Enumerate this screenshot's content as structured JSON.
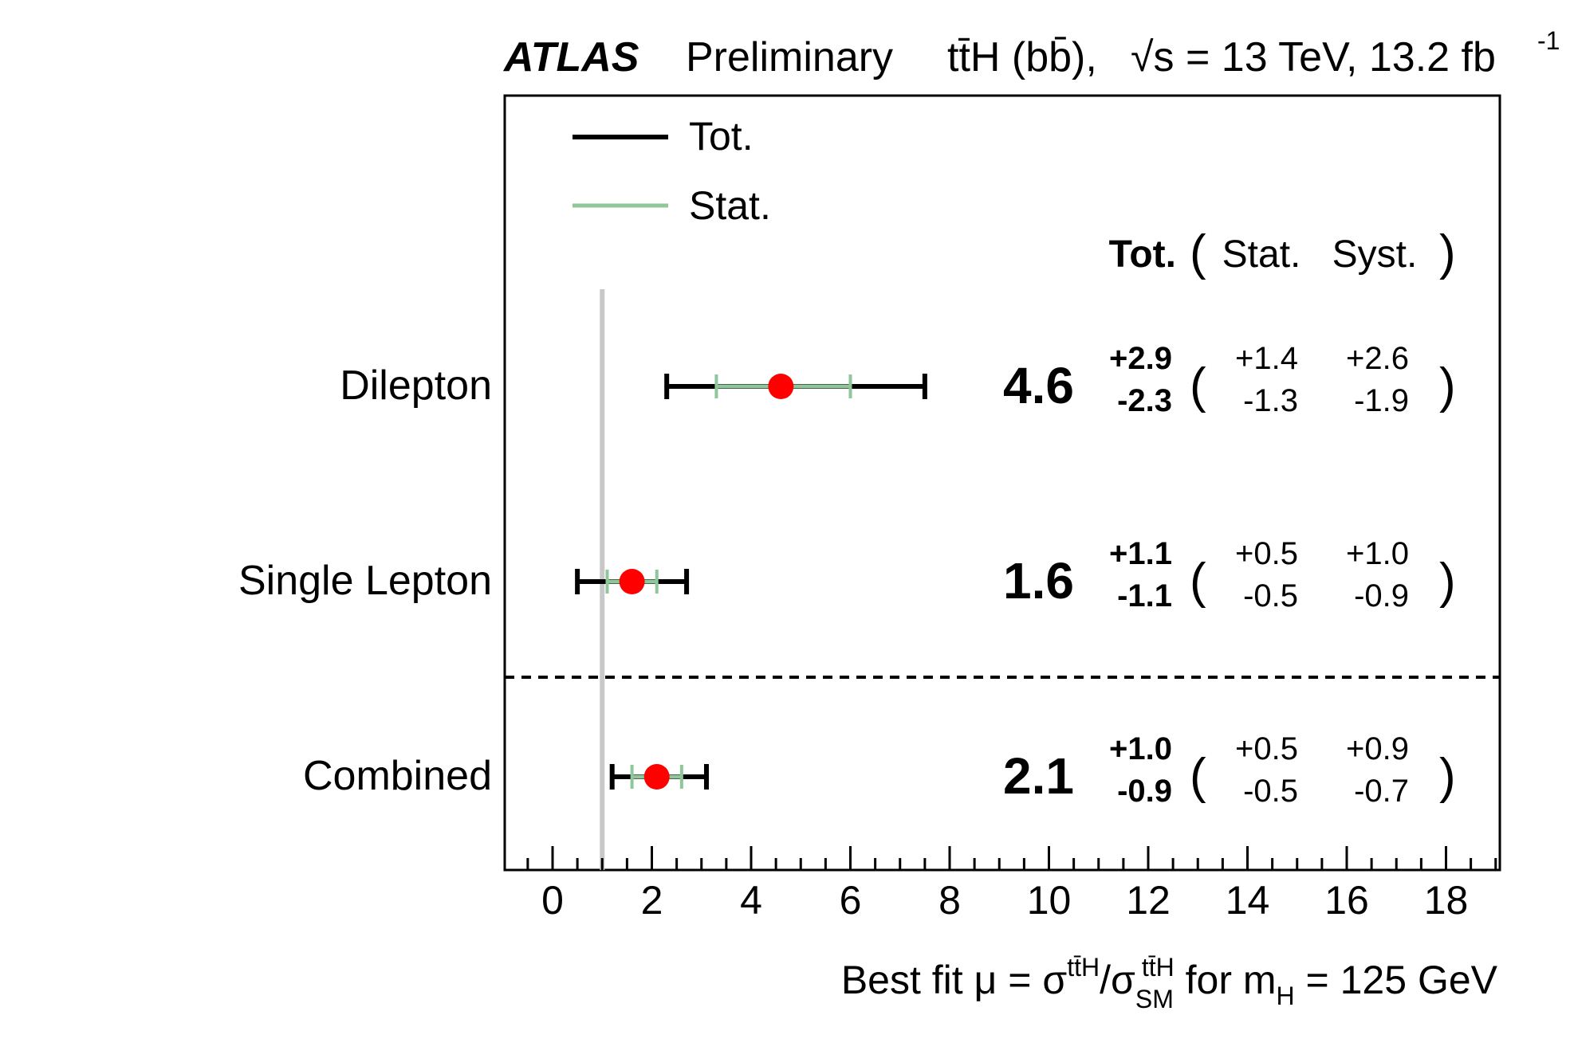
{
  "header": {
    "experiment": "ATLAS",
    "status": "Preliminary",
    "process": "tt̄H (bb̄),",
    "energy": "√s = 13 TeV, 13.2 fb",
    "lumi_exp": "-1"
  },
  "legend": {
    "total_label": "Tot.",
    "stat_label": "Stat."
  },
  "columns": {
    "tot": "Tot.",
    "open_paren": "(",
    "stat": "Stat.",
    "syst": "Syst.",
    "close_paren": ")"
  },
  "xaxis": {
    "label_main": "Best fit μ = σ",
    "label_sup1": "tt̄H",
    "label_slash": "/σ",
    "label_sub": "SM",
    "label_sup2": "tt̄H",
    "label_tail": " for m",
    "label_sub_h": "H",
    "label_end": " = 125 GeV"
  },
  "colors": {
    "total_bar": "#000000",
    "stat_bar": "#8fc79a",
    "point": "#ff0000",
    "sm_line": "#c8c8c8"
  },
  "chart_data": {
    "type": "scatter",
    "xlim": [
      -1,
      19
    ],
    "xticks": [
      0,
      2,
      4,
      6,
      8,
      10,
      12,
      14,
      16,
      18
    ],
    "sm_reference": 1,
    "rows": [
      {
        "name": "Dilepton",
        "value": 4.6,
        "value_label": "4.6",
        "tot_up": "+2.9",
        "tot_down": "-2.3",
        "stat_up": "+1.4",
        "stat_down": "-1.3",
        "syst_up": "+2.6",
        "syst_down": "-1.9",
        "tot_plus": 2.9,
        "tot_minus": 2.3,
        "stat_plus": 1.4,
        "stat_minus": 1.3
      },
      {
        "name": "Single Lepton",
        "value": 1.6,
        "value_label": "1.6",
        "tot_up": "+1.1",
        "tot_down": "-1.1",
        "stat_up": "+0.5",
        "stat_down": "-0.5",
        "syst_up": "+1.0",
        "syst_down": "-0.9",
        "tot_plus": 1.1,
        "tot_minus": 1.1,
        "stat_plus": 0.5,
        "stat_minus": 0.5
      },
      {
        "name": "Combined",
        "value": 2.1,
        "value_label": "2.1",
        "tot_up": "+1.0",
        "tot_down": "-0.9",
        "stat_up": "+0.5",
        "stat_down": "-0.5",
        "syst_up": "+0.9",
        "syst_down": "-0.7",
        "tot_plus": 1.0,
        "tot_minus": 0.9,
        "stat_plus": 0.5,
        "stat_minus": 0.5
      }
    ]
  }
}
